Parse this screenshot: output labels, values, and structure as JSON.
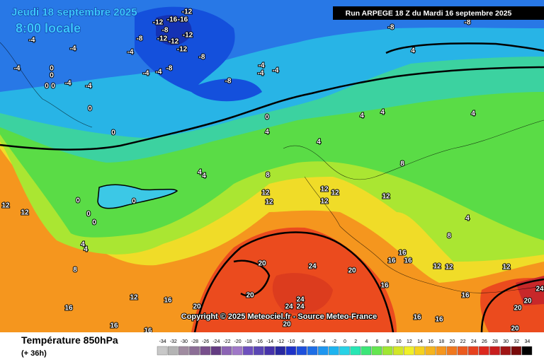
{
  "header": {
    "date": "Jeudi 18 septembre 2025",
    "time": "8:00 locale",
    "run": "Run ARPEGE 18 Z du Mardi 16 septembre 2025"
  },
  "copyright": "Copyright © 2025 Meteociel.fr - Source Meteo-France",
  "footer": {
    "title": "Température 850hPa",
    "lead": "(+ 36h)"
  },
  "legend": {
    "ticks": [
      -34,
      -32,
      -30,
      -28,
      -26,
      -24,
      -22,
      -20,
      -18,
      -16,
      -14,
      -12,
      -10,
      -8,
      -6,
      -4,
      -2,
      0,
      2,
      4,
      6,
      8,
      10,
      12,
      14,
      16,
      18,
      20,
      22,
      24,
      26,
      28,
      30,
      32,
      34
    ],
    "colors": [
      "#c8c8c8",
      "#b4b4b4",
      "#a08ca0",
      "#8c6e96",
      "#78508c",
      "#643c82",
      "#8c64b4",
      "#a078c8",
      "#6e50be",
      "#5a46b4",
      "#4632aa",
      "#2828a0",
      "#1e32c8",
      "#1e50dc",
      "#1e6ee6",
      "#1e96f0",
      "#1eb4f0",
      "#28d2e6",
      "#28e6b4",
      "#3ce678",
      "#64e650",
      "#a0e632",
      "#d2e628",
      "#f0f028",
      "#f5d21e",
      "#f5b41e",
      "#f5961e",
      "#f0781e",
      "#eb5a1e",
      "#e6411e",
      "#dc281e",
      "#c81e1e",
      "#a01414",
      "#780a0a",
      "#000000"
    ]
  },
  "contour_labels": [
    -12,
    -16,
    -16,
    -12,
    -8,
    -8,
    -12,
    -12,
    -12,
    -12,
    -8,
    -4,
    -4,
    -4,
    -4,
    0,
    0,
    0,
    0,
    -4,
    -4,
    -4,
    -4,
    -8,
    -8,
    -4,
    -4,
    -4,
    -8,
    -8,
    4,
    0,
    0,
    0,
    4,
    4,
    4,
    4,
    4,
    4,
    4,
    0,
    0,
    0,
    0,
    8,
    12,
    12,
    12,
    12,
    12,
    12,
    8,
    4,
    8,
    12,
    12,
    4,
    4,
    8,
    16,
    16,
    16,
    20,
    24,
    20,
    16,
    12,
    12,
    12,
    20,
    20,
    24,
    24,
    24,
    16,
    16,
    12,
    16,
    16,
    20,
    16,
    16,
    16,
    20,
    20,
    20,
    24
  ]
}
